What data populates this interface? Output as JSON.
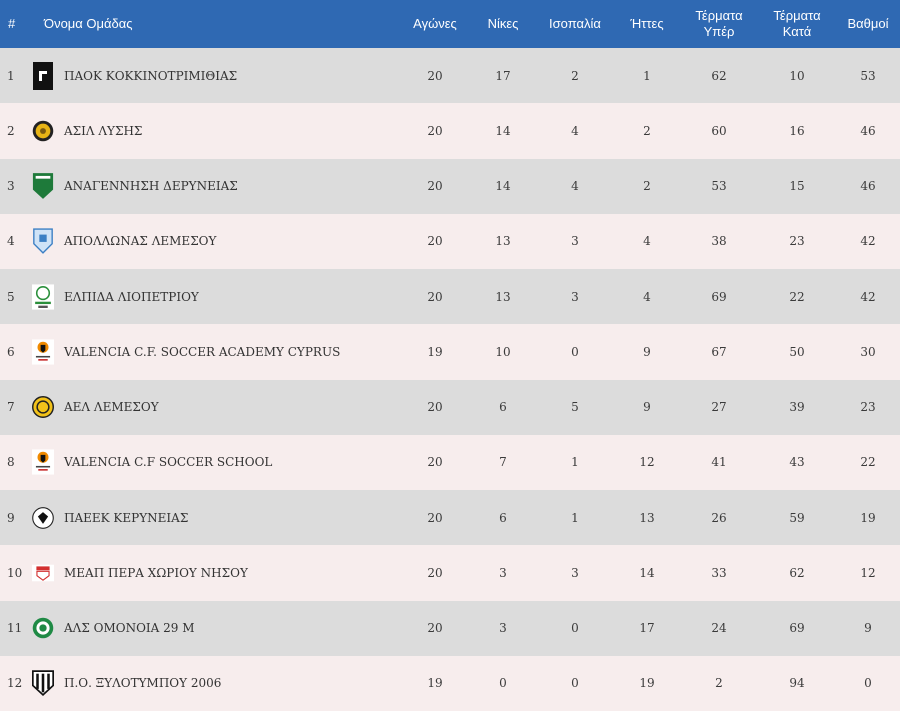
{
  "headers": {
    "rank": "#",
    "team": "Όνομα Ομάδας",
    "played": "Αγώνες",
    "wins": "Νίκες",
    "draws": "Ισοπαλία",
    "losses": "Ήττες",
    "goals_for_1": "Τέρματα",
    "goals_for_2": "Υπέρ",
    "goals_against_1": "Τέρματα",
    "goals_against_2": "Κατά",
    "points": "Βαθμοί"
  },
  "colors": {
    "header_bg": "#2f69b3",
    "row_odd": "#dcdcdc",
    "row_even": "#f7eded"
  },
  "rows": [
    {
      "rank": "1",
      "team": "ΠΑΟΚ ΚΟΚΚΙΝΟΤΡΙΜΙΘΙΑΣ",
      "played": "20",
      "wins": "17",
      "draws": "2",
      "losses": "1",
      "gf": "62",
      "ga": "10",
      "pts": "53",
      "logo": "paok-logo"
    },
    {
      "rank": "2",
      "team": "ΑΣΙΛ ΛΥΣΗΣ",
      "played": "20",
      "wins": "14",
      "draws": "4",
      "losses": "2",
      "gf": "60",
      "ga": "16",
      "pts": "46",
      "logo": "asil-logo"
    },
    {
      "rank": "3",
      "team": "ΑΝΑΓΕΝΝΗΣΗ ΔΕΡΥΝΕΙΑΣ",
      "played": "20",
      "wins": "14",
      "draws": "4",
      "losses": "2",
      "gf": "53",
      "ga": "15",
      "pts": "46",
      "logo": "anagennisi-logo"
    },
    {
      "rank": "4",
      "team": "ΑΠΟΛΛΩΝΑΣ ΛΕΜΕΣΟΥ",
      "played": "20",
      "wins": "13",
      "draws": "3",
      "losses": "4",
      "gf": "38",
      "ga": "23",
      "pts": "42",
      "logo": "apollon-logo"
    },
    {
      "rank": "5",
      "team": "ΕΛΠΙΔΑ ΛΙΟΠΕΤΡΙΟΥ",
      "played": "20",
      "wins": "13",
      "draws": "3",
      "losses": "4",
      "gf": "69",
      "ga": "22",
      "pts": "42",
      "logo": "elpida-logo"
    },
    {
      "rank": "6",
      "team": "VALENCIA C.F. SOCCER ACADEMY CYPRUS",
      "played": "19",
      "wins": "10",
      "draws": "0",
      "losses": "9",
      "gf": "67",
      "ga": "50",
      "pts": "30",
      "logo": "valencia-academy-logo"
    },
    {
      "rank": "7",
      "team": "ΑΕΛ ΛΕΜΕΣΟΥ",
      "played": "20",
      "wins": "6",
      "draws": "5",
      "losses": "9",
      "gf": "27",
      "ga": "39",
      "pts": "23",
      "logo": "ael-logo"
    },
    {
      "rank": "8",
      "team": "VALENCIA C.F SOCCER SCHOOL",
      "played": "20",
      "wins": "7",
      "draws": "1",
      "losses": "12",
      "gf": "41",
      "ga": "43",
      "pts": "22",
      "logo": "valencia-school-logo"
    },
    {
      "rank": "9",
      "team": "ΠΑΕΕΚ ΚΕΡΥΝΕΙΑΣ",
      "played": "20",
      "wins": "6",
      "draws": "1",
      "losses": "13",
      "gf": "26",
      "ga": "59",
      "pts": "19",
      "logo": "paeek-logo"
    },
    {
      "rank": "10",
      "team": "ΜΕΑΠ ΠΕΡΑ ΧΩΡΙΟΥ ΝΗΣΟΥ",
      "played": "20",
      "wins": "3",
      "draws": "3",
      "losses": "14",
      "gf": "33",
      "ga": "62",
      "pts": "12",
      "logo": "meap-logo"
    },
    {
      "rank": "11",
      "team": "ΑΛΣ ΟΜΟΝΟΙΑ 29 Μ",
      "played": "20",
      "wins": "3",
      "draws": "0",
      "losses": "17",
      "gf": "24",
      "ga": "69",
      "pts": "9",
      "logo": "omonoia-logo"
    },
    {
      "rank": "12",
      "team": "Π.Ο. ΞΥΛΟΤΥΜΠΟΥ 2006",
      "played": "19",
      "wins": "0",
      "draws": "0",
      "losses": "19",
      "gf": "2",
      "ga": "94",
      "pts": "0",
      "logo": "xylotympou-logo"
    }
  ]
}
